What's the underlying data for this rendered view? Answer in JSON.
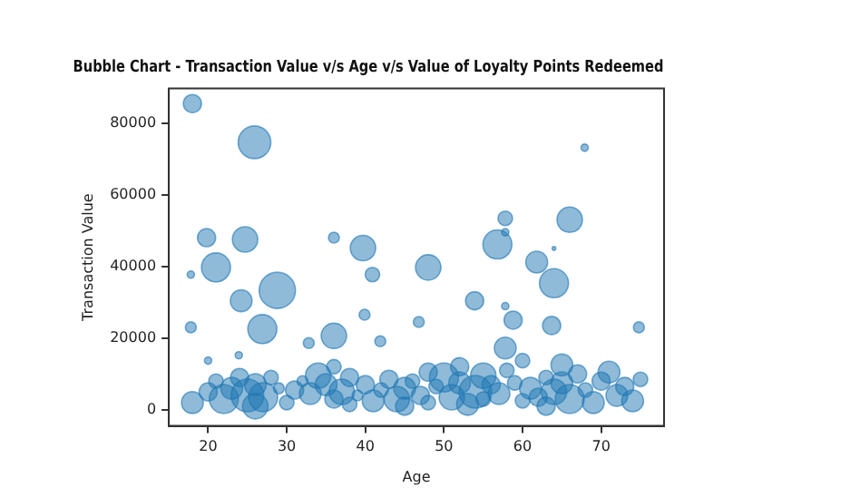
{
  "chart_data": {
    "type": "bubble",
    "title": "Bubble Chart - Transaction Value v/s Age v/s Value of Loyalty Points Redeemed",
    "xlabel": "Age",
    "ylabel": "Transaction Value",
    "x": [
      18,
      25.9,
      19.8,
      24.7,
      36,
      39.7,
      17.8,
      21,
      67.9,
      57.8,
      57.8,
      66,
      56.8,
      64,
      40.9,
      48,
      61.8,
      64,
      24.2,
      28.8,
      26.9,
      17.8,
      32.8,
      36,
      20,
      23.9,
      46.8,
      39.9,
      53.9,
      57.8,
      58.8,
      41.9,
      57.8,
      63.7,
      74.8,
      60,
      18,
      20,
      21,
      22,
      23,
      24,
      25,
      26,
      26,
      27,
      28,
      29,
      30,
      31,
      32,
      33,
      34,
      35,
      36,
      36,
      37,
      38,
      38,
      39,
      40,
      41,
      42,
      43,
      44,
      45,
      45,
      46,
      47,
      48,
      48,
      49,
      50,
      51,
      52,
      52,
      53,
      54,
      55,
      55,
      56,
      57,
      58,
      59,
      60,
      61,
      62,
      63,
      63,
      64,
      65,
      65,
      66,
      67,
      68,
      69,
      70,
      71,
      72,
      73,
      74,
      75
    ],
    "values": [
      85400,
      74600,
      48000,
      47500,
      48000,
      45100,
      37700,
      39700,
      73100,
      53400,
      49500,
      53000,
      46100,
      45000,
      37700,
      39700,
      41200,
      35300,
      30400,
      33300,
      22500,
      23000,
      18600,
      20600,
      13700,
      15200,
      24500,
      26500,
      30400,
      28900,
      25000,
      19100,
      17200,
      23500,
      23000,
      13700,
      2000,
      5000,
      8000,
      3000,
      6000,
      9000,
      4000,
      1000,
      7000,
      3500,
      9000,
      6000,
      2000,
      5500,
      8000,
      4500,
      9500,
      7000,
      12000,
      3000,
      5000,
      1500,
      9000,
      4000,
      7000,
      2500,
      5500,
      8500,
      3000,
      6000,
      1000,
      8000,
      4000,
      2000,
      10500,
      6500,
      9000,
      3500,
      7500,
      12000,
      1500,
      5000,
      9500,
      3000,
      7000,
      4500,
      11000,
      7500,
      2500,
      6000,
      3500,
      9000,
      1000,
      5000,
      12500,
      7500,
      3000,
      10000,
      5500,
      2000,
      8000,
      10500,
      4000,
      6500,
      2500,
      8500
    ],
    "sizes": [
      0.25,
      0.81,
      0.25,
      0.49,
      0.09,
      0.49,
      0.04,
      0.64,
      0.04,
      0.16,
      0.04,
      0.49,
      0.64,
      0.01,
      0.16,
      0.49,
      0.36,
      0.64,
      0.36,
      1,
      0.64,
      0.09,
      0.09,
      0.49,
      0.04,
      0.04,
      0.09,
      0.09,
      0.25,
      0.04,
      0.25,
      0.09,
      0.36,
      0.25,
      0.09,
      0.16,
      0.36,
      0.25,
      0.16,
      0.64,
      0.36,
      0.25,
      0.81,
      0.49,
      0.36,
      0.64,
      0.16,
      0.09,
      0.16,
      0.25,
      0.09,
      0.36,
      0.49,
      0.36,
      0.16,
      0.25,
      0.49,
      0.16,
      0.25,
      0.09,
      0.25,
      0.36,
      0.16,
      0.25,
      0.49,
      0.36,
      0.25,
      0.16,
      0.25,
      0.16,
      0.25,
      0.16,
      0.64,
      0.49,
      0.36,
      0.25,
      0.36,
      0.81,
      0.49,
      0.16,
      0.25,
      0.36,
      0.16,
      0.16,
      0.16,
      0.36,
      0.25,
      0.16,
      0.25,
      0.49,
      0.36,
      0.36,
      0.64,
      0.25,
      0.16,
      0.36,
      0.25,
      0.36,
      0.36,
      0.25,
      0.36,
      0.16
    ],
    "color": "#1f77b4",
    "marker": "circle",
    "grid": false,
    "legend": false,
    "xlim": [
      15,
      78
    ],
    "xticks": [
      20,
      30,
      40,
      50,
      60,
      70
    ],
    "ylim": [
      -4500,
      89600
    ],
    "yticks": [
      0,
      20000,
      40000,
      60000,
      80000
    ]
  }
}
